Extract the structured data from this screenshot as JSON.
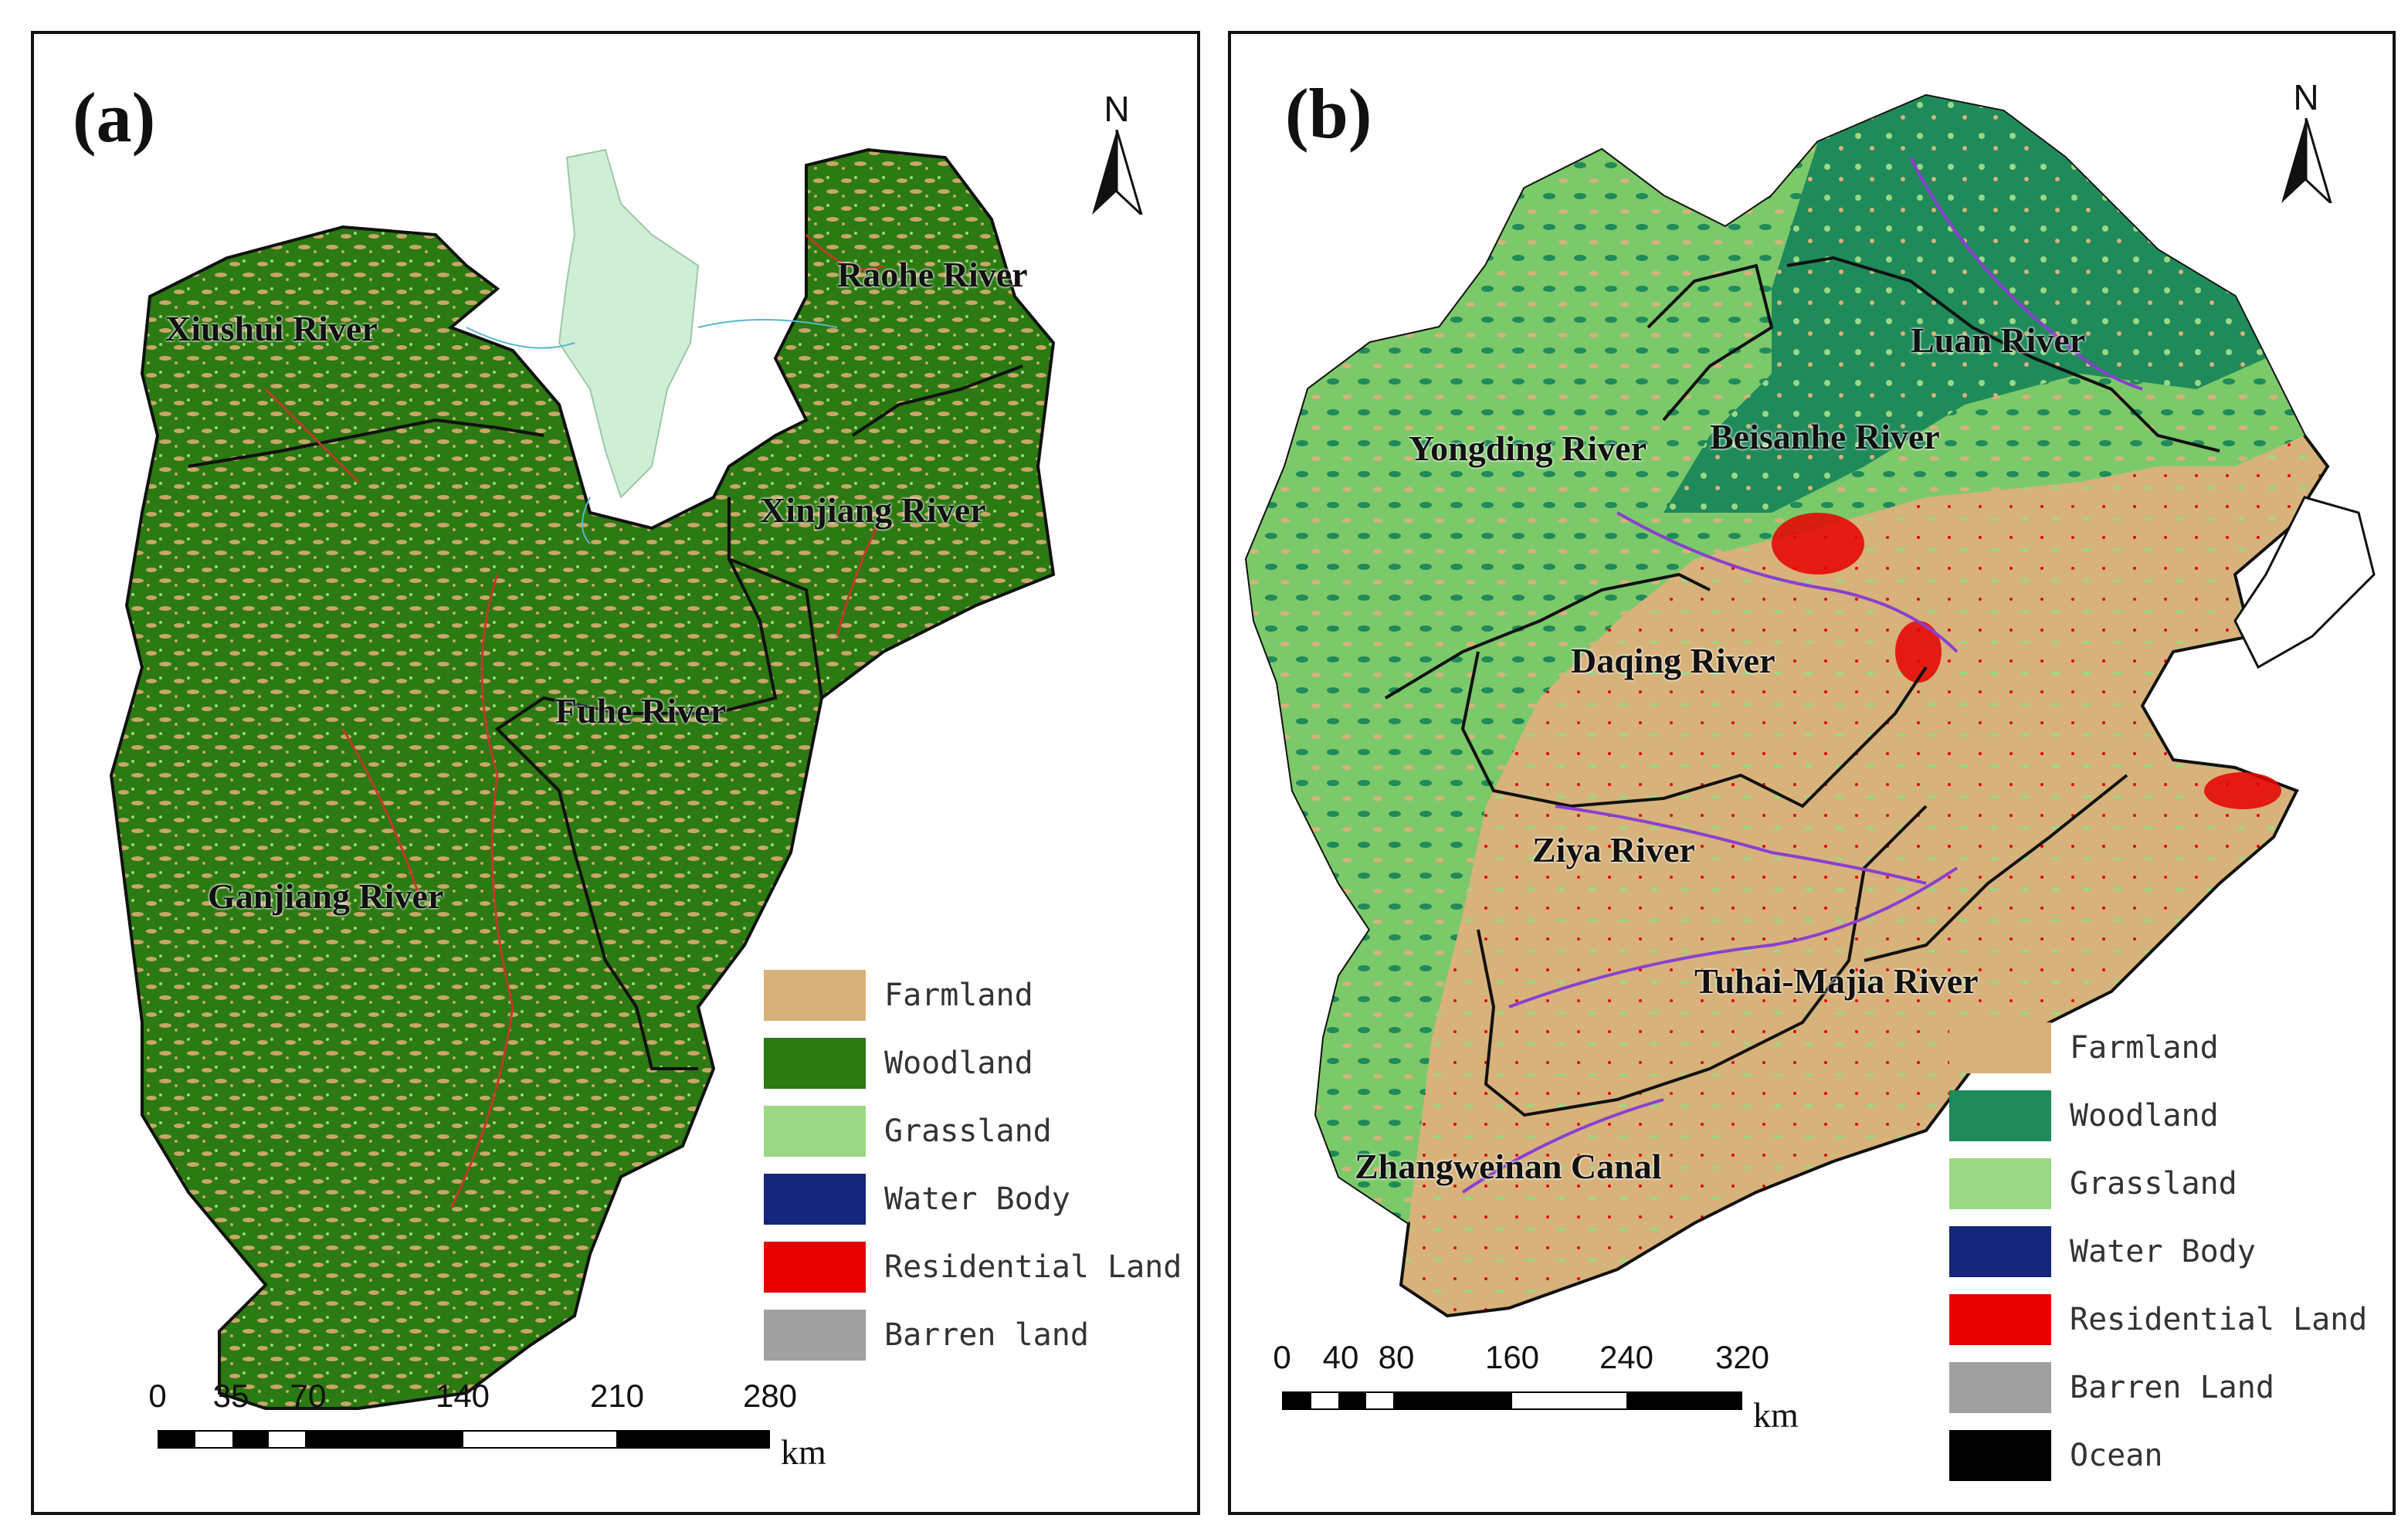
{
  "panels": [
    {
      "label": "(a)",
      "north": "N",
      "rivers": [
        "Xiushui River",
        "Raohe River",
        "Xinjiang River",
        "Fuhe River",
        "Ganjiang River"
      ],
      "legend": [
        {
          "label": "Farmland",
          "color": "#d7b27a"
        },
        {
          "label": "Woodland",
          "color": "#2b7a12"
        },
        {
          "label": "Grassland",
          "color": "#9ad883"
        },
        {
          "label": "Water Body",
          "color": "#13267a"
        },
        {
          "label": "Residential Land",
          "color": "#e60000"
        },
        {
          "label": "Barren land",
          "color": "#a0a0a0"
        }
      ],
      "scale": {
        "ticks": [
          "0",
          "35",
          "70",
          "140",
          "210",
          "280"
        ],
        "unit": "km"
      }
    },
    {
      "label": "(b)",
      "north": "N",
      "rivers": [
        "Luan River",
        "Yongding River",
        "Beisanhe River",
        "Daqing River",
        "Ziya River",
        "Tuhai-Majia River",
        "Zhangweinan Canal"
      ],
      "legend": [
        {
          "label": "Farmland",
          "color": "#d7b27a"
        },
        {
          "label": "Woodland",
          "color": "#1f8a5a"
        },
        {
          "label": "Grassland",
          "color": "#9ad883"
        },
        {
          "label": "Water Body",
          "color": "#13267a"
        },
        {
          "label": "Residential Land",
          "color": "#e60000"
        },
        {
          "label": "Barren Land",
          "color": "#a0a0a0"
        },
        {
          "label": "Ocean",
          "color": "#000000"
        }
      ],
      "scale": {
        "ticks": [
          "0",
          "40",
          "80",
          "160",
          "240",
          "320"
        ],
        "unit": "km"
      }
    }
  ],
  "colors": {
    "lake": "#cfeed6",
    "river_line": "#8a3fd0",
    "boundary": "#111111",
    "red_river": "#c0392b"
  }
}
